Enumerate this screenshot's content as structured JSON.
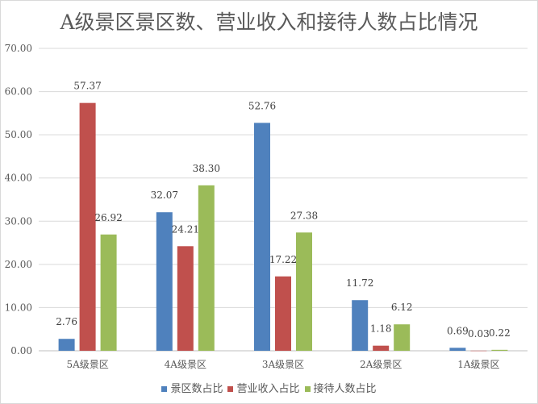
{
  "chart_data": {
    "type": "bar",
    "title": "A级景区景区数、营业收入和接待人数占比情况",
    "categories": [
      "5A级景区",
      "4A级景区",
      "3A级景区",
      "2A级景区",
      "1A级景区"
    ],
    "series": [
      {
        "name": "景区数占比",
        "color": "#4f81bd",
        "values": [
          2.76,
          32.07,
          52.76,
          11.72,
          0.69
        ],
        "labels": [
          "2.76",
          "32.07",
          "52.76",
          "11.72",
          "0.69"
        ]
      },
      {
        "name": "营业收入占比",
        "color": "#c0504d",
        "values": [
          57.37,
          24.21,
          17.22,
          1.18,
          0.03
        ],
        "labels": [
          "57.37",
          "24.21",
          "17.22",
          "1.18",
          "0.03"
        ]
      },
      {
        "name": "接待人数占比",
        "color": "#9bbb59",
        "values": [
          26.92,
          38.3,
          27.38,
          6.12,
          0.22
        ],
        "labels": [
          "26.92",
          "38.30",
          "27.38",
          "6.12",
          "0.22"
        ]
      }
    ],
    "yticks": [
      "0.00",
      "10.00",
      "20.00",
      "30.00",
      "40.00",
      "50.00",
      "60.00",
      "70.00"
    ],
    "ylim": [
      0,
      70
    ],
    "grid": true,
    "legend_position": "bottom"
  }
}
